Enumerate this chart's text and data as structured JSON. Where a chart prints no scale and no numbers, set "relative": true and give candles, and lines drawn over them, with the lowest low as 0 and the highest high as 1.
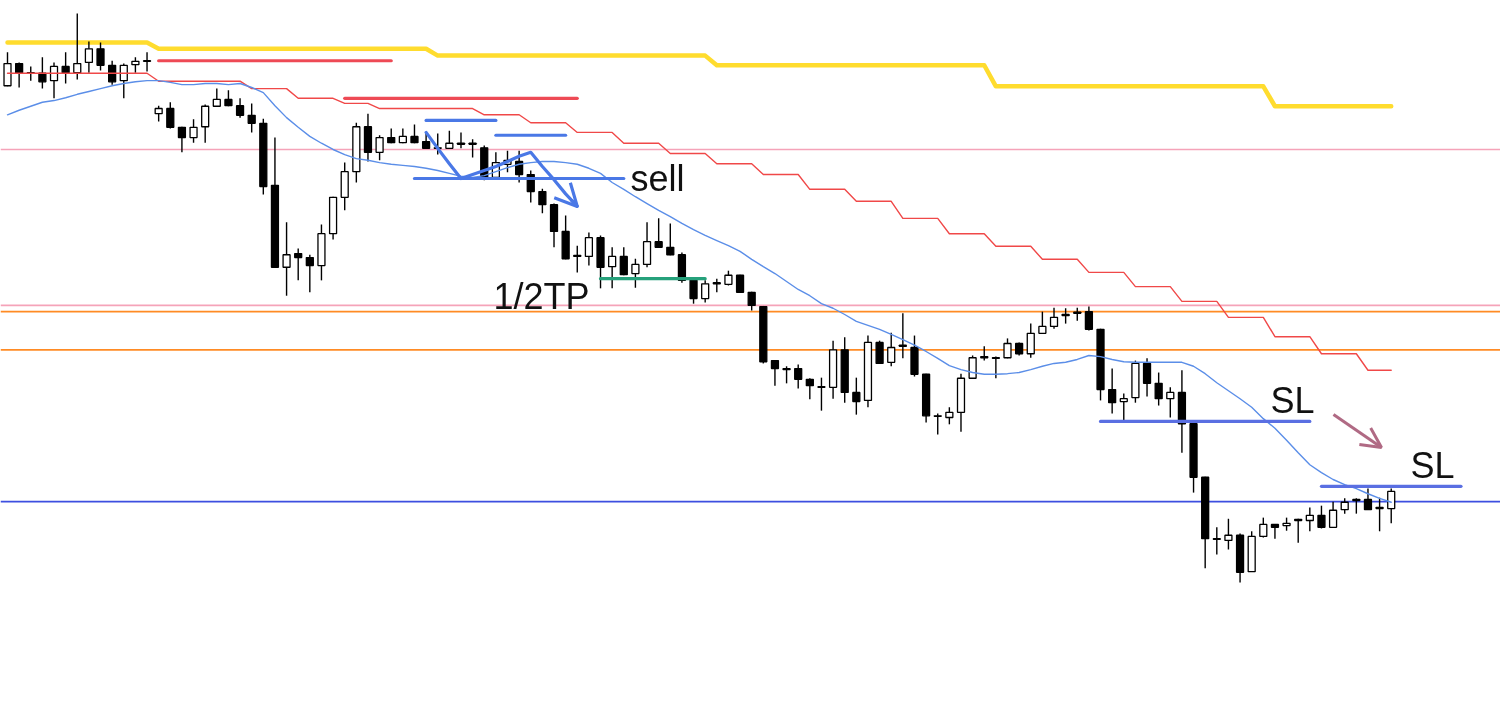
{
  "chart_data": {
    "type": "candlestick",
    "relative": true,
    "tick_labels": false,
    "color": "#000000",
    "categories": [
      null,
      null,
      null,
      null,
      null,
      null,
      null,
      null,
      null,
      null,
      null,
      null,
      null,
      null,
      null,
      null,
      null,
      null,
      null,
      null,
      null,
      null,
      null,
      null,
      null,
      null,
      null,
      null,
      null,
      null,
      null,
      null,
      null,
      null,
      null,
      null,
      null,
      null,
      null,
      null,
      null,
      null,
      null,
      null,
      null,
      null,
      null,
      null,
      null,
      null,
      null,
      null,
      null,
      null,
      null,
      null,
      null,
      null,
      null,
      null,
      null,
      null,
      null,
      null,
      null,
      null,
      null,
      null,
      null,
      null,
      null,
      null,
      null,
      null,
      null,
      null,
      null,
      null,
      null,
      null,
      null,
      null,
      null,
      null,
      null,
      null,
      null,
      null,
      null,
      null,
      null,
      null,
      null,
      null,
      null,
      null,
      null,
      null,
      null,
      null,
      null,
      null,
      null,
      null,
      null,
      null,
      null,
      null,
      null,
      null,
      null,
      null,
      null,
      null,
      null,
      null,
      null,
      null,
      null,
      null,
      null,
      null,
      null,
      null,
      null,
      null,
      null,
      null,
      null
    ],
    "ohlc": [
      [
        0.873,
        0.932,
        0.872,
        0.912
      ],
      [
        0.912,
        0.914,
        0.87,
        0.896
      ],
      [
        0.896,
        0.907,
        0.882,
        0.895
      ],
      [
        0.895,
        0.923,
        0.868,
        0.88
      ],
      [
        0.882,
        0.914,
        0.851,
        0.907
      ],
      [
        0.907,
        0.932,
        0.877,
        0.896
      ],
      [
        0.896,
        1.0,
        0.884,
        0.912
      ],
      [
        0.914,
        0.951,
        0.896,
        0.938
      ],
      [
        0.938,
        0.949,
        0.9,
        0.909
      ],
      [
        0.909,
        0.917,
        0.875,
        0.88
      ],
      [
        0.882,
        0.912,
        0.851,
        0.909
      ],
      [
        0.91,
        0.923,
        0.896,
        0.916
      ],
      [
        0.916,
        0.932,
        0.898,
        0.917
      ],
      [
        0.824,
        0.838,
        0.81,
        0.833
      ],
      [
        0.833,
        0.844,
        0.798,
        0.8
      ],
      [
        0.8,
        0.801,
        0.756,
        0.782
      ],
      [
        0.782,
        0.814,
        0.773,
        0.8
      ],
      [
        0.801,
        0.84,
        0.773,
        0.837
      ],
      [
        0.837,
        0.868,
        0.837,
        0.849
      ],
      [
        0.849,
        0.865,
        0.837,
        0.838
      ],
      [
        0.838,
        0.851,
        0.817,
        0.821
      ],
      [
        0.821,
        0.842,
        0.791,
        0.807
      ],
      [
        0.807,
        0.815,
        0.682,
        0.696
      ],
      [
        0.698,
        0.782,
        0.554,
        0.554
      ],
      [
        0.554,
        0.633,
        0.504,
        0.576
      ],
      [
        0.578,
        0.587,
        0.531,
        0.571
      ],
      [
        0.571,
        0.576,
        0.51,
        0.557
      ],
      [
        0.557,
        0.629,
        0.531,
        0.613
      ],
      [
        0.613,
        0.678,
        0.603,
        0.677
      ],
      [
        0.677,
        0.738,
        0.654,
        0.722
      ],
      [
        0.722,
        0.808,
        0.703,
        0.801
      ],
      [
        0.801,
        0.824,
        0.74,
        0.756
      ],
      [
        0.756,
        0.786,
        0.742,
        0.782
      ],
      [
        0.782,
        0.798,
        0.772,
        0.773
      ],
      [
        0.773,
        0.798,
        0.772,
        0.784
      ],
      [
        0.784,
        0.805,
        0.772,
        0.773
      ],
      [
        0.775,
        0.791,
        0.763,
        0.763
      ],
      [
        0.764,
        0.789,
        0.752,
        0.763
      ],
      [
        0.763,
        0.794,
        0.763,
        0.772
      ],
      [
        0.772,
        0.791,
        0.763,
        0.77
      ],
      [
        0.772,
        0.779,
        0.747,
        0.77
      ],
      [
        0.764,
        0.768,
        0.707,
        0.712
      ],
      [
        0.712,
        0.756,
        0.71,
        0.738
      ],
      [
        0.735,
        0.759,
        0.721,
        0.742
      ],
      [
        0.74,
        0.759,
        0.703,
        0.717
      ],
      [
        0.717,
        0.724,
        0.668,
        0.687
      ],
      [
        0.687,
        0.692,
        0.649,
        0.664
      ],
      [
        0.664,
        0.666,
        0.589,
        0.617
      ],
      [
        0.617,
        0.645,
        0.568,
        0.569
      ],
      [
        0.575,
        0.592,
        0.545,
        0.573
      ],
      [
        0.573,
        0.615,
        0.557,
        0.606
      ],
      [
        0.606,
        0.61,
        0.517,
        0.554
      ],
      [
        0.555,
        0.589,
        0.517,
        0.573
      ],
      [
        0.573,
        0.589,
        0.54,
        0.541
      ],
      [
        0.543,
        0.569,
        0.518,
        0.559
      ],
      [
        0.559,
        0.633,
        0.554,
        0.599
      ],
      [
        0.599,
        0.64,
        0.589,
        0.589
      ],
      [
        0.589,
        0.631,
        0.575,
        0.576
      ],
      [
        0.576,
        0.58,
        0.527,
        0.531
      ],
      [
        0.531,
        0.533,
        0.49,
        0.499
      ],
      [
        0.499,
        0.531,
        0.492,
        0.525
      ],
      [
        0.525,
        0.534,
        0.51,
        0.527
      ],
      [
        0.524,
        0.548,
        0.522,
        0.54
      ],
      [
        0.54,
        0.541,
        0.51,
        0.51
      ],
      [
        0.51,
        0.511,
        0.478,
        0.487
      ],
      [
        0.485,
        0.486,
        0.385,
        0.388
      ],
      [
        0.39,
        0.391,
        0.346,
        0.376
      ],
      [
        0.376,
        0.38,
        0.35,
        0.374
      ],
      [
        0.376,
        0.383,
        0.341,
        0.357
      ],
      [
        0.357,
        0.359,
        0.322,
        0.346
      ],
      [
        0.344,
        0.36,
        0.302,
        0.343
      ],
      [
        0.343,
        0.425,
        0.323,
        0.409
      ],
      [
        0.409,
        0.431,
        0.316,
        0.334
      ],
      [
        0.334,
        0.36,
        0.295,
        0.318
      ],
      [
        0.32,
        0.434,
        0.308,
        0.422
      ],
      [
        0.422,
        0.425,
        0.385,
        0.385
      ],
      [
        0.387,
        0.439,
        0.38,
        0.413
      ],
      [
        0.417,
        0.473,
        0.394,
        0.415
      ],
      [
        0.413,
        0.434,
        0.362,
        0.366
      ],
      [
        0.366,
        0.367,
        0.281,
        0.293
      ],
      [
        0.293,
        0.297,
        0.26,
        0.292
      ],
      [
        0.29,
        0.308,
        0.278,
        0.299
      ],
      [
        0.299,
        0.367,
        0.265,
        0.359
      ],
      [
        0.359,
        0.399,
        0.359,
        0.395
      ],
      [
        0.395,
        0.415,
        0.39,
        0.397
      ],
      [
        0.395,
        0.397,
        0.359,
        0.394
      ],
      [
        0.395,
        0.429,
        0.394,
        0.42
      ],
      [
        0.42,
        0.422,
        0.399,
        0.402
      ],
      [
        0.402,
        0.455,
        0.395,
        0.438
      ],
      [
        0.438,
        0.476,
        0.438,
        0.45
      ],
      [
        0.45,
        0.483,
        0.446,
        0.466
      ],
      [
        0.471,
        0.482,
        0.455,
        0.469
      ],
      [
        0.475,
        0.483,
        0.46,
        0.473
      ],
      [
        0.476,
        0.485,
        0.443,
        0.445
      ],
      [
        0.445,
        0.446,
        0.32,
        0.339
      ],
      [
        0.339,
        0.376,
        0.297,
        0.316
      ],
      [
        0.318,
        0.332,
        0.281,
        0.323
      ],
      [
        0.325,
        0.39,
        0.316,
        0.385
      ],
      [
        0.385,
        0.394,
        0.327,
        0.35
      ],
      [
        0.35,
        0.369,
        0.311,
        0.323
      ],
      [
        0.323,
        0.343,
        0.29,
        0.334
      ],
      [
        0.334,
        0.373,
        0.228,
        0.279
      ],
      [
        0.279,
        0.281,
        0.158,
        0.185
      ],
      [
        0.185,
        0.186,
        0.025,
        0.077
      ],
      [
        0.077,
        0.097,
        0.049,
        0.076
      ],
      [
        0.074,
        0.112,
        0.058,
        0.083
      ],
      [
        0.083,
        0.086,
        0.0,
        0.018
      ],
      [
        0.019,
        0.09,
        0.019,
        0.081
      ],
      [
        0.081,
        0.114,
        0.079,
        0.102
      ],
      [
        0.102,
        0.103,
        0.077,
        0.097
      ],
      [
        0.1,
        0.114,
        0.091,
        0.104
      ],
      [
        0.111,
        0.112,
        0.07,
        0.109
      ],
      [
        0.109,
        0.132,
        0.09,
        0.118
      ],
      [
        0.118,
        0.135,
        0.095,
        0.097
      ],
      [
        0.097,
        0.142,
        0.097,
        0.127
      ],
      [
        0.128,
        0.148,
        0.121,
        0.141
      ],
      [
        0.146,
        0.148,
        0.121,
        0.144
      ],
      [
        0.146,
        0.165,
        0.128,
        0.128
      ],
      [
        0.132,
        0.149,
        0.09,
        0.13
      ],
      [
        0.13,
        0.165,
        0.104,
        0.16
      ],
      null,
      null,
      null,
      null,
      null,
      null,
      null,
      null,
      null
    ],
    "series": [
      {
        "type": "line",
        "color": "#ffdc2e",
        "values": [
          0.949,
          0.949,
          0.949,
          0.949,
          0.949,
          0.949,
          0.949,
          0.949,
          0.949,
          0.949,
          0.949,
          0.949,
          0.949,
          0.938,
          0.938,
          0.938,
          0.938,
          0.938,
          0.938,
          0.938,
          0.938,
          0.938,
          0.938,
          0.938,
          0.938,
          0.938,
          0.938,
          0.938,
          0.938,
          0.938,
          0.938,
          0.938,
          0.938,
          0.938,
          0.938,
          0.938,
          0.938,
          0.926,
          0.926,
          0.926,
          0.926,
          0.926,
          0.926,
          0.926,
          0.926,
          0.926,
          0.926,
          0.926,
          0.926,
          0.926,
          0.926,
          0.926,
          0.926,
          0.926,
          0.926,
          0.926,
          0.926,
          0.926,
          0.926,
          0.926,
          0.926,
          0.909,
          0.909,
          0.909,
          0.909,
          0.909,
          0.909,
          0.909,
          0.909,
          0.909,
          0.909,
          0.909,
          0.909,
          0.909,
          0.909,
          0.909,
          0.909,
          0.909,
          0.909,
          0.909,
          0.909,
          0.909,
          0.909,
          0.909,
          0.909,
          0.872,
          0.872,
          0.872,
          0.872,
          0.872,
          0.872,
          0.872,
          0.872,
          0.872,
          0.872,
          0.872,
          0.872,
          0.872,
          0.872,
          0.872,
          0.872,
          0.872,
          0.872,
          0.872,
          0.872,
          0.872,
          0.872,
          0.872,
          0.872,
          0.837,
          0.837,
          0.837,
          0.837,
          0.837,
          0.837,
          0.837,
          0.837,
          0.837,
          0.837,
          0.837,
          null,
          null,
          null,
          null,
          null,
          null,
          null,
          null,
          null
        ]
      },
      {
        "type": "line",
        "color": "#f04848",
        "values": [
          0.895,
          0.895,
          0.895,
          0.895,
          0.895,
          0.895,
          0.895,
          0.895,
          0.895,
          0.895,
          0.895,
          0.895,
          0.895,
          0.881,
          0.881,
          0.881,
          0.881,
          0.881,
          0.881,
          0.881,
          0.881,
          0.868,
          0.868,
          0.868,
          0.868,
          0.851,
          0.851,
          0.851,
          0.851,
          0.842,
          0.842,
          0.842,
          0.833,
          0.833,
          0.833,
          0.833,
          0.833,
          0.833,
          0.833,
          0.833,
          0.833,
          0.822,
          0.822,
          0.822,
          0.822,
          0.808,
          0.808,
          0.808,
          0.808,
          0.791,
          0.791,
          0.791,
          0.791,
          0.772,
          0.772,
          0.772,
          0.772,
          0.754,
          0.754,
          0.754,
          0.754,
          0.736,
          0.736,
          0.736,
          0.736,
          0.717,
          0.717,
          0.717,
          0.717,
          0.691,
          0.691,
          0.691,
          0.691,
          0.67,
          0.67,
          0.67,
          0.67,
          0.64,
          0.64,
          0.64,
          0.64,
          0.613,
          0.613,
          0.613,
          0.613,
          0.591,
          0.591,
          0.591,
          0.591,
          0.568,
          0.568,
          0.568,
          0.568,
          0.545,
          0.545,
          0.545,
          0.545,
          0.52,
          0.52,
          0.52,
          0.52,
          0.494,
          0.494,
          0.494,
          0.494,
          0.466,
          0.466,
          0.466,
          0.466,
          0.432,
          0.432,
          0.432,
          0.432,
          0.402,
          0.402,
          0.402,
          0.402,
          0.373,
          0.373,
          0.373,
          null,
          null,
          null,
          null,
          null,
          null,
          null,
          null,
          null
        ]
      },
      {
        "type": "line",
        "color": "#5b8ee8",
        "values": [
          0.822,
          0.83,
          0.837,
          0.844,
          0.847,
          0.852,
          0.858,
          0.863,
          0.868,
          0.873,
          0.877,
          0.88,
          0.882,
          0.882,
          0.879,
          0.875,
          0.875,
          0.877,
          0.877,
          0.875,
          0.877,
          0.87,
          0.861,
          0.838,
          0.817,
          0.8,
          0.784,
          0.772,
          0.761,
          0.752,
          0.745,
          0.742,
          0.738,
          0.735,
          0.733,
          0.731,
          0.728,
          0.724,
          0.719,
          0.714,
          0.712,
          0.715,
          0.722,
          0.729,
          0.735,
          0.738,
          0.74,
          0.74,
          0.738,
          0.735,
          0.728,
          0.719,
          0.703,
          0.691,
          0.678,
          0.666,
          0.654,
          0.643,
          0.631,
          0.62,
          0.61,
          0.601,
          0.592,
          0.582,
          0.568,
          0.555,
          0.543,
          0.529,
          0.515,
          0.504,
          0.49,
          0.482,
          0.471,
          0.459,
          0.452,
          0.445,
          0.436,
          0.427,
          0.417,
          0.406,
          0.394,
          0.381,
          0.374,
          0.369,
          0.366,
          0.366,
          0.367,
          0.369,
          0.374,
          0.38,
          0.385,
          0.387,
          0.392,
          0.399,
          0.397,
          0.392,
          0.388,
          0.387,
          0.387,
          0.387,
          0.387,
          0.387,
          0.38,
          0.367,
          0.351,
          0.337,
          0.323,
          0.308,
          0.288,
          0.271,
          0.25,
          0.228,
          0.207,
          0.193,
          0.181,
          0.172,
          0.165,
          0.156,
          0.148,
          0.141,
          null,
          null,
          null,
          null,
          null,
          null,
          null,
          null,
          null
        ]
      },
      {
        "type": "line",
        "color": "#ee4a55",
        "values": [
          null,
          null,
          null,
          null,
          null,
          null,
          null,
          null,
          null,
          null,
          null,
          null,
          null,
          0.917,
          0.917,
          0.917,
          0.917,
          0.917,
          0.917,
          0.917,
          0.917,
          0.917,
          0.917,
          0.917,
          0.917,
          0.917,
          0.917,
          0.917,
          0.917,
          0.917,
          0.917,
          0.917,
          0.917,
          0.917,
          null,
          null,
          null,
          null,
          null,
          null,
          null,
          null,
          null,
          null,
          null,
          null,
          null,
          null,
          null,
          null,
          null,
          null,
          null,
          null,
          null,
          null,
          null,
          null,
          null,
          null,
          null,
          null,
          null,
          null,
          null,
          null,
          null,
          null,
          null,
          null,
          null,
          null,
          null,
          null,
          null,
          null,
          null,
          null,
          null,
          null,
          null,
          null,
          null,
          null,
          null,
          null,
          null,
          null,
          null,
          null,
          null,
          null,
          null,
          null,
          null,
          null,
          null,
          null,
          null,
          null,
          null,
          null,
          null,
          null,
          null,
          null,
          null,
          null,
          null,
          null,
          null,
          null,
          null,
          null,
          null,
          null,
          null,
          null,
          null,
          null,
          null,
          null,
          null,
          null,
          null,
          null,
          null,
          null,
          null
        ]
      },
      {
        "type": "line",
        "color": "#ee4a55",
        "values": [
          null,
          null,
          null,
          null,
          null,
          null,
          null,
          null,
          null,
          null,
          null,
          null,
          null,
          null,
          null,
          null,
          null,
          null,
          null,
          null,
          null,
          null,
          null,
          null,
          null,
          null,
          null,
          null,
          null,
          0.851,
          0.851,
          0.851,
          0.851,
          0.851,
          0.851,
          0.851,
          0.851,
          0.851,
          0.851,
          0.851,
          0.851,
          0.851,
          0.851,
          0.851,
          0.851,
          0.851,
          0.851,
          0.851,
          0.851,
          0.851,
          null,
          null,
          null,
          null,
          null,
          null,
          null,
          null,
          null,
          null,
          null,
          null,
          null,
          null,
          null,
          null,
          null,
          null,
          null,
          null,
          null,
          null,
          null,
          null,
          null,
          null,
          null,
          null,
          null,
          null,
          null,
          null,
          null,
          null,
          null,
          null,
          null,
          null,
          null,
          null,
          null,
          null,
          null,
          null,
          null,
          null,
          null,
          null,
          null,
          null,
          null,
          null,
          null,
          null,
          null,
          null,
          null,
          null,
          null,
          null,
          null,
          null,
          null,
          null,
          null,
          null,
          null,
          null,
          null,
          null,
          null,
          null,
          null,
          null,
          null,
          null,
          null,
          null,
          null
        ]
      },
      {
        "type": "line",
        "color": "#4a78e6",
        "values": [
          null,
          null,
          null,
          null,
          null,
          null,
          null,
          null,
          null,
          null,
          null,
          null,
          null,
          null,
          null,
          null,
          null,
          null,
          null,
          null,
          null,
          null,
          null,
          null,
          null,
          null,
          null,
          null,
          null,
          null,
          null,
          null,
          null,
          null,
          null,
          null,
          0.812,
          0.812,
          0.812,
          0.812,
          0.812,
          0.812,
          0.812,
          null,
          null,
          null,
          null,
          null,
          null,
          null,
          null,
          null,
          null,
          null,
          null,
          null,
          null,
          null,
          null,
          null,
          null,
          null,
          null,
          null,
          null,
          null,
          null,
          null,
          null,
          null,
          null,
          null,
          null,
          null,
          null,
          null,
          null,
          null,
          null,
          null,
          null,
          null,
          null,
          null,
          null,
          null,
          null,
          null,
          null,
          null,
          null,
          null,
          null,
          null,
          null,
          null,
          null,
          null,
          null,
          null,
          null,
          null,
          null,
          null,
          null,
          null,
          null,
          null,
          null,
          null,
          null,
          null,
          null,
          null,
          null,
          null,
          null,
          null,
          null,
          null,
          null,
          null,
          null,
          null,
          null,
          null,
          null,
          null,
          null
        ]
      },
      {
        "type": "line",
        "color": "#4a78e6",
        "values": [
          null,
          null,
          null,
          null,
          null,
          null,
          null,
          null,
          null,
          null,
          null,
          null,
          null,
          null,
          null,
          null,
          null,
          null,
          null,
          null,
          null,
          null,
          null,
          null,
          null,
          null,
          null,
          null,
          null,
          null,
          null,
          null,
          null,
          null,
          null,
          null,
          null,
          null,
          null,
          null,
          null,
          null,
          0.786,
          0.786,
          0.786,
          0.786,
          0.786,
          0.786,
          0.786,
          null,
          null,
          null,
          null,
          null,
          null,
          null,
          null,
          null,
          null,
          null,
          null,
          null,
          null,
          null,
          null,
          null,
          null,
          null,
          null,
          null,
          null,
          null,
          null,
          null,
          null,
          null,
          null,
          null,
          null,
          null,
          null,
          null,
          null,
          null,
          null,
          null,
          null,
          null,
          null,
          null,
          null,
          null,
          null,
          null,
          null,
          null,
          null,
          null,
          null,
          null,
          null,
          null,
          null,
          null,
          null,
          null,
          null,
          null,
          null,
          null,
          null,
          null,
          null,
          null,
          null,
          null,
          null,
          null,
          null,
          null,
          null,
          null,
          null,
          null,
          null,
          null,
          null,
          null,
          null
        ]
      },
      {
        "type": "line",
        "color": "#4a78e6",
        "values": [
          null,
          null,
          null,
          null,
          null,
          null,
          null,
          null,
          null,
          null,
          null,
          null,
          null,
          null,
          null,
          null,
          null,
          null,
          null,
          null,
          null,
          null,
          null,
          null,
          null,
          null,
          null,
          null,
          null,
          null,
          null,
          null,
          null,
          null,
          null,
          0.71,
          0.71,
          0.71,
          0.71,
          0.71,
          0.71,
          0.71,
          0.71,
          0.71,
          0.71,
          0.71,
          0.71,
          0.71,
          0.71,
          0.71,
          0.71,
          0.71,
          0.71,
          0.71,
          null,
          null,
          null,
          null,
          null,
          null,
          null,
          null,
          null,
          null,
          null,
          null,
          null,
          null,
          null,
          null,
          null,
          null,
          null,
          null,
          null,
          null,
          null,
          null,
          null,
          null,
          null,
          null,
          null,
          null,
          null,
          null,
          null,
          null,
          null,
          null,
          null,
          null,
          null,
          null,
          null,
          null,
          null,
          null,
          null,
          null,
          null,
          null,
          null,
          null,
          null,
          null,
          null,
          null,
          null,
          null,
          null,
          null,
          null,
          null,
          null,
          null,
          null,
          null,
          null,
          null,
          null,
          null,
          null,
          null,
          null,
          null,
          null,
          null,
          null
        ]
      },
      {
        "type": "line",
        "color": "#4a78e6",
        "values": [
          null,
          null,
          null,
          null,
          null,
          null,
          null,
          null,
          null,
          null,
          null,
          null,
          null,
          null,
          null,
          null,
          null,
          null,
          null,
          null,
          null,
          null,
          null,
          null,
          null,
          null,
          null,
          null,
          null,
          null,
          null,
          null,
          null,
          null,
          null,
          null,
          0.791,
          0.763,
          0.736,
          0.71,
          0.717,
          0.724,
          0.731,
          0.74,
          0.749,
          0.756,
          0.731,
          0.708,
          0.683,
          0.661,
          null,
          null,
          null,
          null,
          null,
          null,
          null,
          null,
          null,
          null,
          null,
          null,
          null,
          null,
          null,
          null,
          null,
          null,
          null,
          null,
          null,
          null,
          null,
          null,
          null,
          null,
          null,
          null,
          null,
          null,
          null,
          null,
          null,
          null,
          null,
          null,
          null,
          null,
          null,
          null,
          null,
          null,
          null,
          null,
          null,
          null,
          null,
          null,
          null,
          null,
          null,
          null,
          null,
          null,
          null,
          null,
          null,
          null,
          null,
          null,
          null,
          null,
          null,
          null,
          null,
          null,
          null,
          null,
          null,
          null,
          null,
          null,
          null,
          null,
          null,
          null,
          null,
          null,
          null
        ]
      },
      {
        "type": "line",
        "color": "#26a17b",
        "values": [
          null,
          null,
          null,
          null,
          null,
          null,
          null,
          null,
          null,
          null,
          null,
          null,
          null,
          null,
          null,
          null,
          null,
          null,
          null,
          null,
          null,
          null,
          null,
          null,
          null,
          null,
          null,
          null,
          null,
          null,
          null,
          null,
          null,
          null,
          null,
          null,
          null,
          null,
          null,
          null,
          null,
          null,
          null,
          null,
          null,
          null,
          null,
          null,
          null,
          null,
          null,
          0.534,
          0.534,
          0.534,
          0.534,
          0.534,
          0.534,
          0.534,
          0.534,
          0.534,
          0.534,
          null,
          null,
          null,
          null,
          null,
          null,
          null,
          null,
          null,
          null,
          null,
          null,
          null,
          null,
          null,
          null,
          null,
          null,
          null,
          null,
          null,
          null,
          null,
          null,
          null,
          null,
          null,
          null,
          null,
          null,
          null,
          null,
          null,
          null,
          null,
          null,
          null,
          null,
          null,
          null,
          null,
          null,
          null,
          null,
          null,
          null,
          null,
          null,
          null,
          null,
          null,
          null,
          null,
          null,
          null,
          null,
          null,
          null,
          null,
          null,
          null,
          null,
          null,
          null,
          null,
          null,
          null,
          null
        ]
      },
      {
        "type": "line",
        "color": "#5a6fe2",
        "values": [
          null,
          null,
          null,
          null,
          null,
          null,
          null,
          null,
          null,
          null,
          null,
          null,
          null,
          null,
          null,
          null,
          null,
          null,
          null,
          null,
          null,
          null,
          null,
          null,
          null,
          null,
          null,
          null,
          null,
          null,
          null,
          null,
          null,
          null,
          null,
          null,
          null,
          null,
          null,
          null,
          null,
          null,
          null,
          null,
          null,
          null,
          null,
          null,
          null,
          null,
          null,
          null,
          null,
          null,
          null,
          null,
          null,
          null,
          null,
          null,
          null,
          null,
          null,
          null,
          null,
          null,
          null,
          null,
          null,
          null,
          null,
          null,
          null,
          null,
          null,
          null,
          null,
          null,
          null,
          null,
          null,
          null,
          null,
          null,
          null,
          null,
          null,
          null,
          null,
          null,
          null,
          null,
          null,
          null,
          0.283,
          0.283,
          0.283,
          0.283,
          0.283,
          0.283,
          0.283,
          0.283,
          0.283,
          0.283,
          0.283,
          0.283,
          0.283,
          0.283,
          0.283,
          0.283,
          0.283,
          0.283,
          0.283,
          null,
          null,
          null,
          null,
          null,
          null,
          null,
          null,
          null,
          null,
          null,
          null,
          null,
          null,
          null,
          null
        ]
      },
      {
        "type": "line",
        "color": "#5a6fe2",
        "values": [
          null,
          null,
          null,
          null,
          null,
          null,
          null,
          null,
          null,
          null,
          null,
          null,
          null,
          null,
          null,
          null,
          null,
          null,
          null,
          null,
          null,
          null,
          null,
          null,
          null,
          null,
          null,
          null,
          null,
          null,
          null,
          null,
          null,
          null,
          null,
          null,
          null,
          null,
          null,
          null,
          null,
          null,
          null,
          null,
          null,
          null,
          null,
          null,
          null,
          null,
          null,
          null,
          null,
          null,
          null,
          null,
          null,
          null,
          null,
          null,
          null,
          null,
          null,
          null,
          null,
          null,
          null,
          null,
          null,
          null,
          null,
          null,
          null,
          null,
          null,
          null,
          null,
          null,
          null,
          null,
          null,
          null,
          null,
          null,
          null,
          null,
          null,
          null,
          null,
          null,
          null,
          null,
          null,
          null,
          null,
          null,
          null,
          null,
          null,
          null,
          null,
          null,
          null,
          null,
          null,
          null,
          null,
          null,
          null,
          null,
          null,
          null,
          null,
          0.169,
          0.169,
          0.169,
          0.169,
          0.169,
          0.169,
          0.169,
          0.169,
          0.169,
          0.169,
          0.169,
          0.169,
          0.169,
          null,
          null,
          null
        ]
      }
    ],
    "ref_lines": [
      {
        "axis": "y",
        "value": 0.761,
        "color": "#f5a3b9"
      },
      {
        "axis": "y",
        "value": 0.487,
        "color": "#f5a3b9"
      },
      {
        "axis": "y",
        "value": 0.476,
        "color": "#ff8b24"
      },
      {
        "axis": "y",
        "value": 0.409,
        "color": "#ff8b24"
      },
      {
        "axis": "y",
        "value": 0.142,
        "color": "#3d4fe0"
      }
    ],
    "annotations": [
      "sell",
      "1/2TP",
      {
        "text": "SL",
        "y": 0.283
      },
      {
        "text": "SL",
        "y": 0.169
      }
    ]
  }
}
